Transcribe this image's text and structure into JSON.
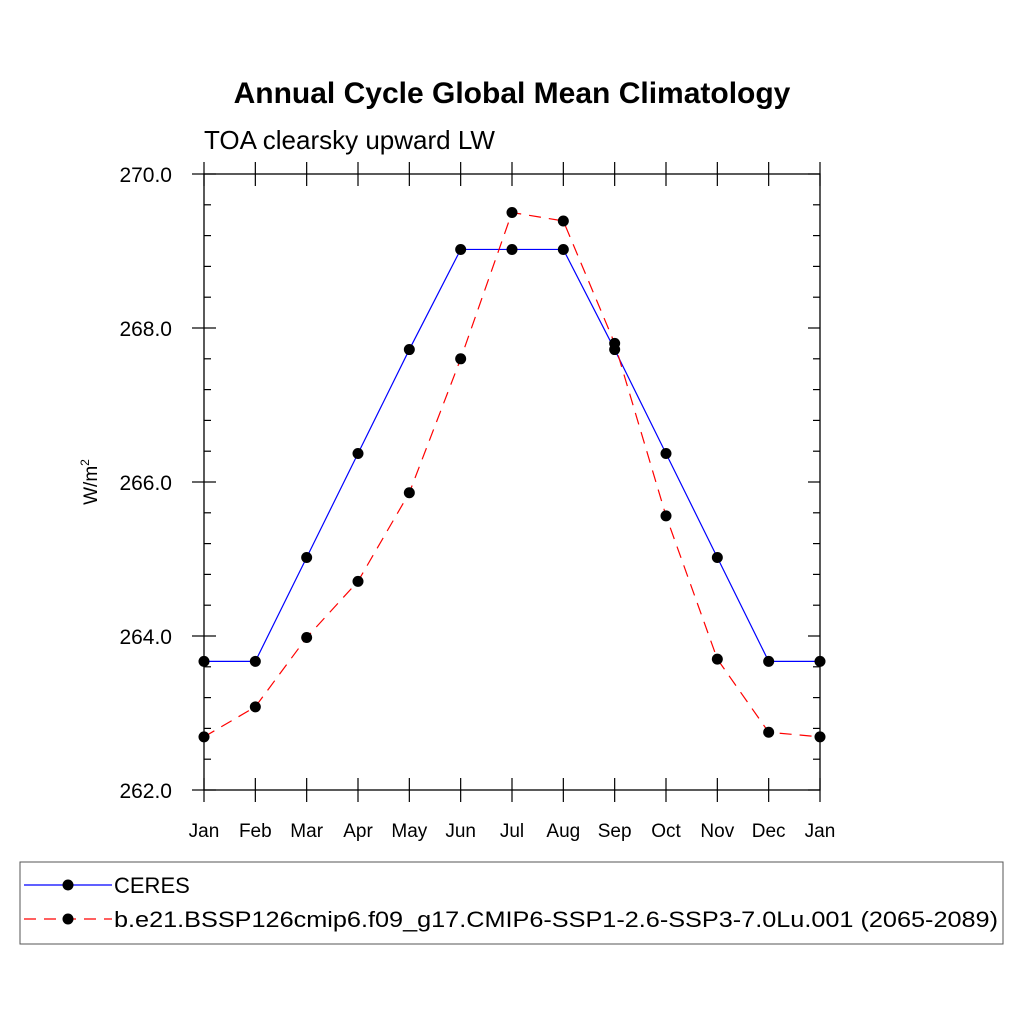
{
  "chart_data": {
    "type": "line",
    "title": "Annual Cycle Global Mean Climatology",
    "subtitle": "TOA clearsky upward LW",
    "xlabel": "",
    "ylabel": "W/m",
    "ylabel_sup": "2",
    "categories": [
      "Jan",
      "Feb",
      "Mar",
      "Apr",
      "May",
      "Jun",
      "Jul",
      "Aug",
      "Sep",
      "Oct",
      "Nov",
      "Dec",
      "Jan"
    ],
    "ylim": [
      262.0,
      270.0
    ],
    "yticks": [
      "262.0",
      "264.0",
      "266.0",
      "268.0",
      "270.0"
    ],
    "grid": false,
    "legend_placement": "bottom",
    "series": [
      {
        "name": "CERES",
        "color": "#0000ff",
        "dash": "solid",
        "values": [
          263.67,
          263.67,
          265.02,
          266.37,
          267.72,
          269.02,
          269.02,
          269.02,
          267.72,
          266.37,
          265.02,
          263.67,
          263.67
        ]
      },
      {
        "name": "b.e21.BSSP126cmip6.f09_g17.CMIP6-SSP1-2.6-SSP3-7.0Lu.001 (2065-2089)",
        "color": "#ff0000",
        "dash": "dashed",
        "values": [
          262.69,
          263.08,
          263.98,
          264.71,
          265.86,
          267.6,
          269.5,
          269.39,
          267.8,
          265.56,
          263.7,
          262.75,
          262.69
        ]
      }
    ]
  }
}
